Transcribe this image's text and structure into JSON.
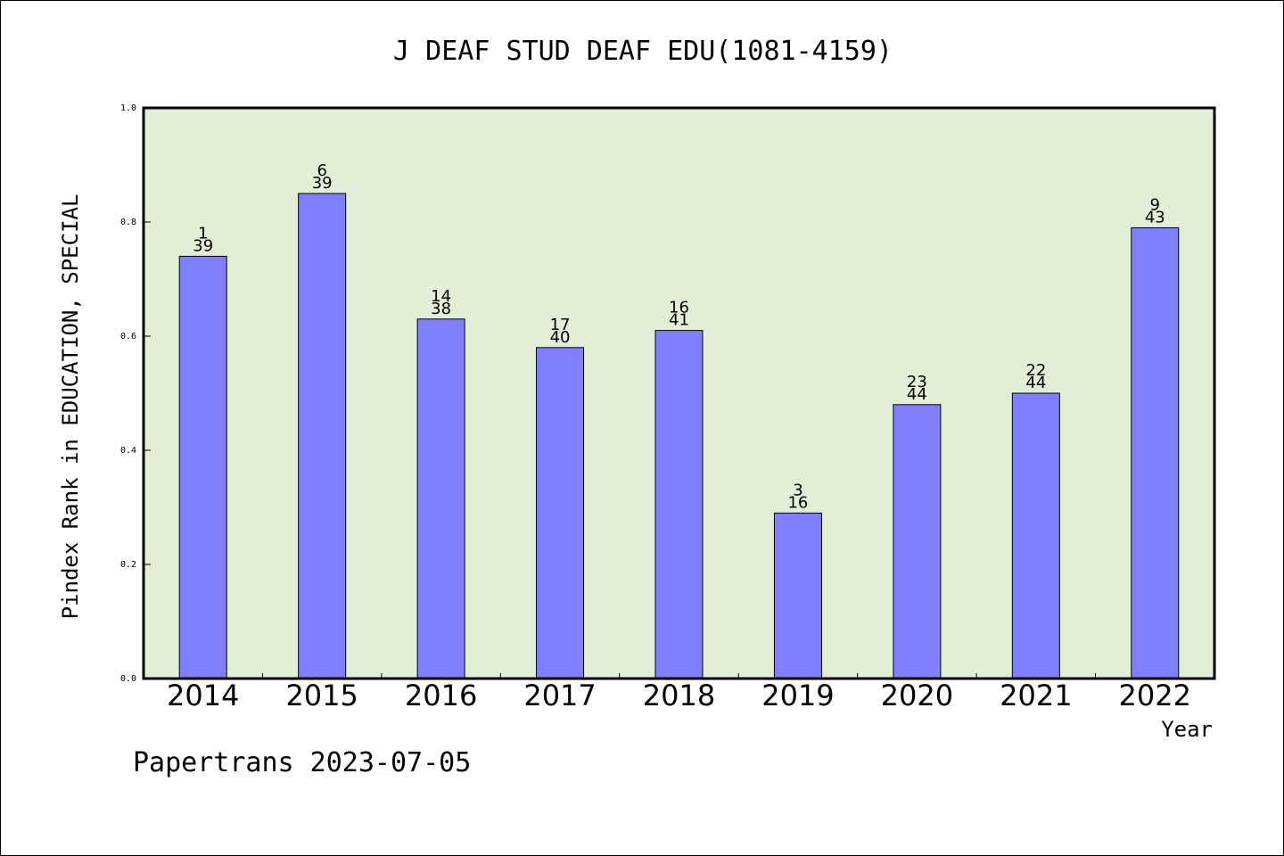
{
  "chart_data": {
    "type": "bar",
    "title": "J DEAF STUD DEAF EDU(1081-4159)",
    "xlabel": "Year",
    "ylabel": "Pindex Rank in EDUCATION, SPECIAL",
    "ylim": [
      0,
      1
    ],
    "yticks": [
      "0.0",
      "0.2",
      "0.4",
      "0.6",
      "0.8",
      "1.0"
    ],
    "grid": false,
    "categories": [
      "2014",
      "2015",
      "2016",
      "2017",
      "2018",
      "2019",
      "2020",
      "2021",
      "2022"
    ],
    "values": [
      0.74,
      0.85,
      0.63,
      0.58,
      0.61,
      0.29,
      0.48,
      0.5,
      0.79
    ],
    "rank": [
      "1",
      "6",
      "14",
      "17",
      "16",
      "3",
      "23",
      "22",
      "9"
    ],
    "total": [
      "39",
      "39",
      "38",
      "40",
      "41",
      "16",
      "44",
      "44",
      "43"
    ],
    "bar_color": "#8080ff",
    "plot_background": "#e2efd6"
  },
  "footer": "Papertrans 2023-07-05"
}
